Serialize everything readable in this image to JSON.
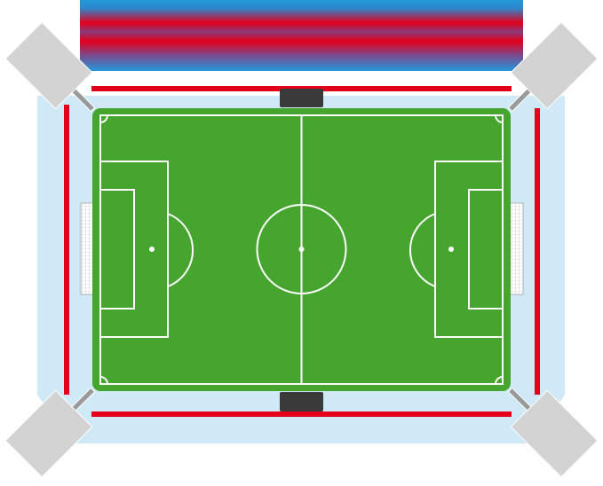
{
  "stadium": {
    "colors": {
      "background": "#ffffff",
      "concourse": "#cfe9f7",
      "pitch": "#46a52f",
      "pitch_border": "#46a52f",
      "lines": "#ffffff",
      "ad_boards": "#e4001b",
      "dugout": "#3a3a3a",
      "floodlight": "#d3d3d3",
      "floodlight_mast": "#9a9a9a",
      "goal_net": "#ffffff",
      "stand_gradient": [
        "#2399d9",
        "#e4001b",
        "#2399d9"
      ]
    },
    "components": {
      "main_stand": "striped-main-stand",
      "floodlights": [
        "floodlight-top-left",
        "floodlight-top-right",
        "floodlight-bottom-left",
        "floodlight-bottom-right"
      ],
      "dugouts": [
        "dugout-top",
        "dugout-bottom"
      ],
      "goals": [
        "goal-left",
        "goal-right"
      ]
    }
  }
}
